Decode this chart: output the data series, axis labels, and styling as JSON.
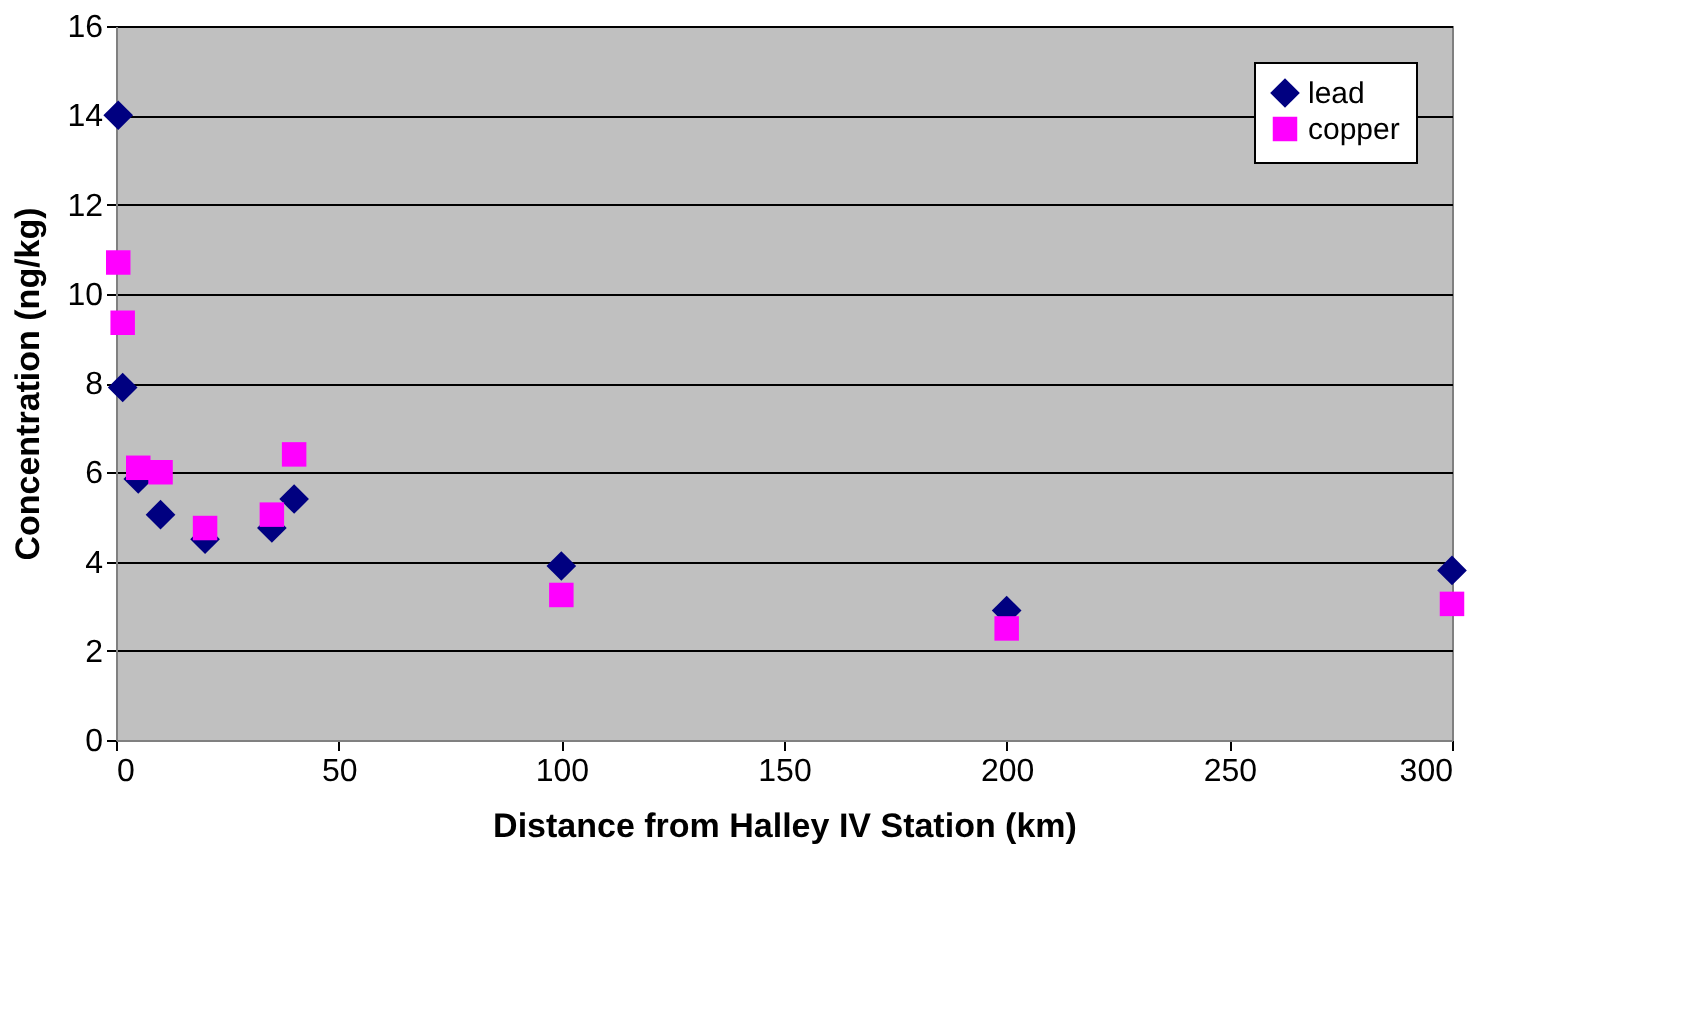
{
  "chart_data": {
    "type": "scatter",
    "xlabel": "Distance from Halley IV Station (km)",
    "ylabel": "Concentration (ng/kg)",
    "xlim": [
      0,
      300
    ],
    "xticks": [
      0,
      50,
      100,
      150,
      200,
      250,
      300
    ],
    "ylim": [
      0,
      16
    ],
    "yticks": [
      0,
      2,
      4,
      6,
      8,
      10,
      12,
      14,
      16
    ],
    "grid": "y",
    "legend": "top right",
    "series": [
      {
        "name": "lead",
        "color": "#000080",
        "marker": "diamond",
        "x": [
          0.5,
          1.5,
          5,
          10,
          20,
          35,
          40,
          100,
          200,
          300
        ],
        "values": [
          14,
          7.9,
          5.85,
          5.05,
          4.5,
          4.75,
          5.4,
          3.9,
          2.9,
          3.8
        ]
      },
      {
        "name": "copper",
        "color": "#ff00ff",
        "marker": "square",
        "x": [
          0.5,
          1.5,
          5,
          10,
          20,
          35,
          40,
          100,
          200,
          300
        ],
        "values": [
          10.7,
          9.35,
          6.1,
          6,
          4.75,
          5.05,
          6.4,
          3.25,
          2.5,
          3.05
        ]
      }
    ]
  }
}
